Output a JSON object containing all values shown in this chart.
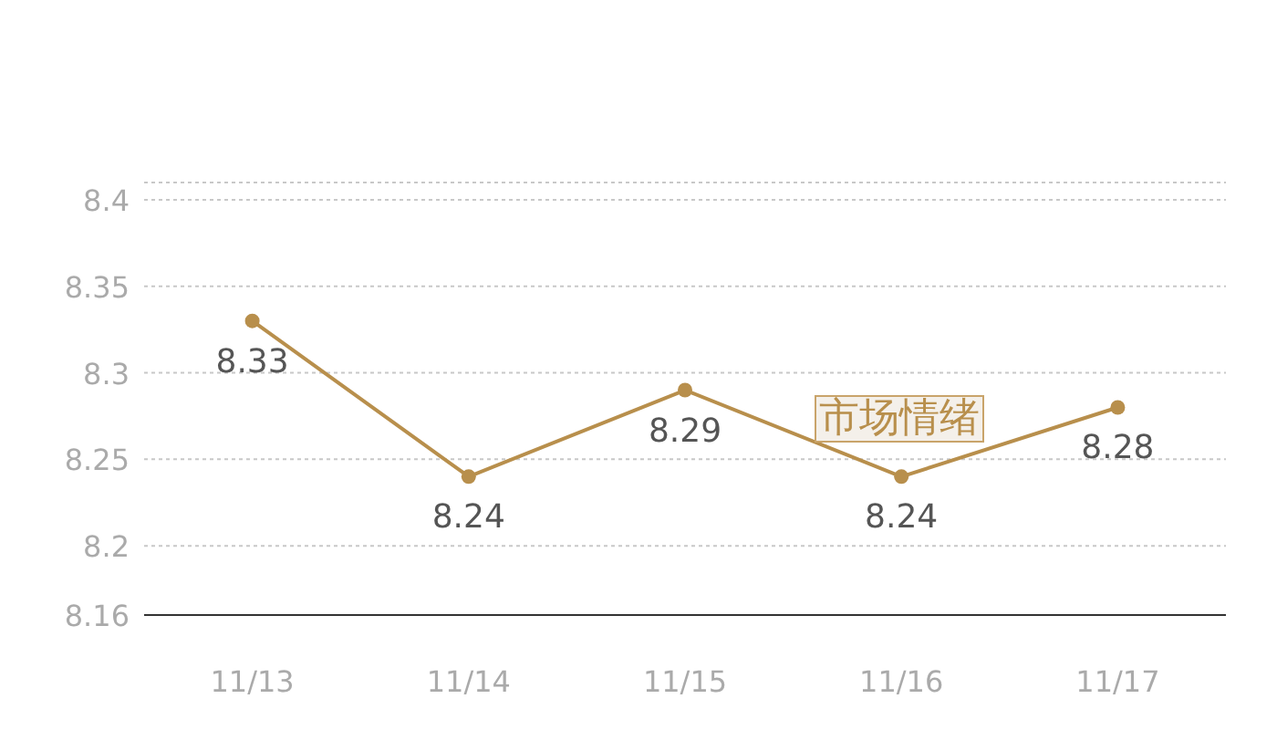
{
  "chart_data": {
    "type": "line",
    "categories": [
      "11/13",
      "11/14",
      "11/15",
      "11/16",
      "11/17"
    ],
    "series": [
      {
        "color": "#b88f4c",
        "values": [
          8.33,
          8.24,
          8.29,
          8.24,
          8.28
        ]
      }
    ],
    "ylim": [
      8.16,
      8.41
    ],
    "yticks": [
      8.16,
      8.2,
      8.25,
      8.3,
      8.35,
      8.4,
      {
        "value": 8.41,
        "label": null
      }
    ],
    "grid": "y",
    "marker": "circle",
    "line_style": "solid",
    "data_labels": true,
    "annotations": [
      "市场情绪"
    ]
  }
}
